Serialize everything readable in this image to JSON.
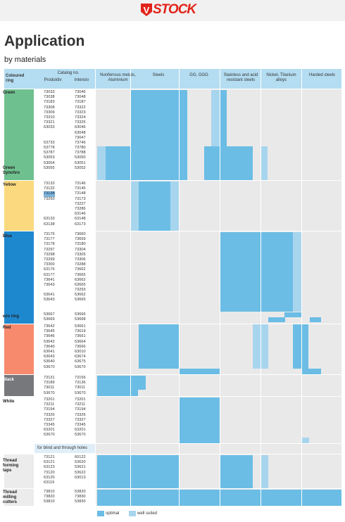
{
  "brand": "STOCK",
  "title": "Application",
  "subtitle": "by materials",
  "header": {
    "ring": "Coloured ring",
    "catalog": "Catalog no.",
    "produktiv": "Produktiv",
    "intensiv": "Intensiv",
    "materials": [
      "Nonferrous metals, Aluminium",
      "Steels",
      "GG, GGG",
      "Stainless and acid resistant steels",
      "Nickel, Titanium alloys",
      "Harded steels"
    ]
  },
  "colors": {
    "optimal": "#6bbde5",
    "well_suited": "#a8d5ee",
    "header": "#b4ddf2",
    "grid": "#e9e9e9"
  },
  "groups": [
    {
      "name": "Green",
      "color": "#6fc08f",
      "extra_label": "Green Synchro",
      "produktiv": [
        "73033",
        "73038",
        "73183",
        "73308",
        "73309",
        "73310",
        "73321",
        "63033",
        "",
        "",
        "53733",
        "53778",
        "53787",
        "53053",
        "53054",
        "53055"
      ],
      "intensiv": [
        "73046",
        "73048",
        "73187",
        "73322",
        "73323",
        "73324",
        "73325",
        "63046",
        "63048",
        "73047",
        "73746",
        "73780",
        "73788",
        "53050",
        "53051",
        "53052"
      ]
    },
    {
      "name": "Yellow",
      "color": "#fbd97e",
      "produktiv": [
        "73133",
        "73132",
        "73138",
        "73250",
        "",
        "",
        "",
        "63133",
        "63138"
      ],
      "intensiv": [
        "73146",
        "73145",
        "73148",
        "73173",
        "73227",
        "73286",
        "63146",
        "63148",
        "63173"
      ]
    },
    {
      "name": "Blue",
      "color": "#1e88cf",
      "produktiv": [
        "73176",
        "73177",
        "73178",
        "73297",
        "73298",
        "73299",
        "73300",
        "63176",
        "63177",
        "73641",
        "73643",
        "",
        "53641",
        "53643"
      ],
      "intensiv": [
        "73660",
        "73659",
        "73180",
        "73304",
        "73305",
        "73306",
        "73288",
        "73662",
        "73665",
        "63662",
        "63665",
        "73293",
        "53662",
        "53665"
      ]
    },
    {
      "name": "w/o ring",
      "color": "#1e88cf",
      "produktiv": [
        "53667",
        "53669"
      ],
      "intensiv": [
        "53666",
        "53668"
      ]
    },
    {
      "name": "Red",
      "color": "#f78a6d",
      "produktiv": [
        "73642",
        "73645",
        "73646",
        "53642",
        "73640",
        "63641",
        "63643",
        "53640",
        "53670"
      ],
      "intensiv": [
        "53661",
        "73619",
        "73661",
        "53664",
        "73666",
        "63010",
        "63674",
        "63675",
        "53670"
      ]
    },
    {
      "name": "Black",
      "color": "#77787b",
      "produktiv": [
        "73131",
        "73189",
        "73011",
        "53670"
      ],
      "intensiv": [
        "73156",
        "73136",
        "73011",
        "53670"
      ]
    },
    {
      "name": "White",
      "color": "#ffffff",
      "produktiv": [
        "73201",
        "73211",
        "73194",
        "73326",
        "73327",
        "73345",
        "63201",
        "53670"
      ],
      "intensiv": [
        "73201",
        "73211",
        "73194",
        "73326",
        "73327",
        "73345",
        "63201",
        "53670"
      ]
    },
    {
      "name": "Thread forming taps",
      "color": "#ececec",
      "produktiv": [
        "73121",
        "63121",
        "63123",
        "73120",
        "63120",
        "63119"
      ],
      "intensiv": [
        "60122",
        "53620",
        "53621",
        "53622",
        "63013",
        ""
      ]
    },
    {
      "name": "Thread milling cutters",
      "color": "#ececec",
      "produktiv": [
        "73810",
        "73820",
        "53810"
      ],
      "intensiv": [
        "53820",
        "73830",
        "53830"
      ]
    }
  ],
  "note": "for blind and through holes",
  "legend": {
    "optimal": "optimal",
    "well_suited": "well suited"
  }
}
